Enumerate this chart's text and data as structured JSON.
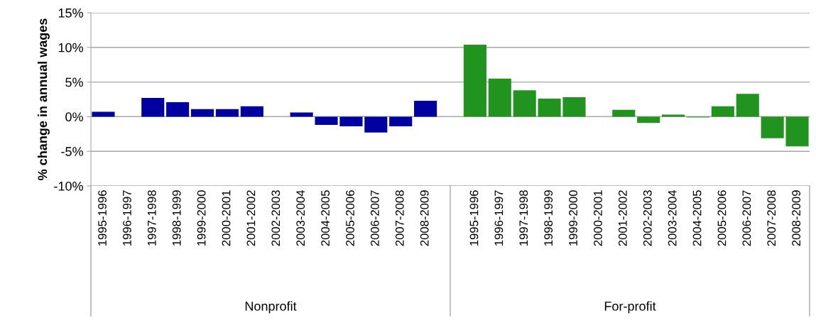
{
  "chart_data": {
    "type": "bar",
    "ylabel": "% change in annual wages",
    "categories": [
      "1995-1996",
      "1996-1997",
      "1997-1998",
      "1998-1999",
      "1999-2000",
      "2000-2001",
      "2001-2002",
      "2002-2003",
      "2003-2004",
      "2004-2005",
      "2005-2006",
      "2006-2007",
      "2007-2008",
      "2008-2009",
      null,
      "1995-1996",
      "1996-1997",
      "1997-1998",
      "1998-1999",
      "1999-2000",
      "2000-2001",
      "2001-2002",
      "2002-2003",
      "2003-2004",
      "2004-2005",
      "2005-2006",
      "2006-2007",
      "2007-2008",
      "2008-2009"
    ],
    "values": [
      0.7,
      0,
      2.7,
      2.1,
      1.1,
      1.1,
      1.5,
      0,
      0.6,
      -1.2,
      -1.4,
      -2.3,
      -1.4,
      2.3,
      null,
      10.4,
      5.5,
      3.8,
      2.6,
      2.8,
      0,
      1.0,
      -0.9,
      0.3,
      -0.1,
      1.5,
      3.3,
      -3.1,
      -4.3
    ],
    "colors": [
      "#0000a0",
      "#0000a0",
      "#0000a0",
      "#0000a0",
      "#0000a0",
      "#0000a0",
      "#0000a0",
      "#0000a0",
      "#0000a0",
      "#0000a0",
      "#0000a0",
      "#0000a0",
      "#0000a0",
      "#0000a0",
      null,
      "#20941e",
      "#20941e",
      "#20941e",
      "#20941e",
      "#20941e",
      "#20941e",
      "#20941e",
      "#20941e",
      "#20941e",
      "#20941e",
      "#20941e",
      "#20941e",
      "#20941e",
      "#20941e"
    ],
    "ylim": [
      -10,
      15
    ],
    "yticks": [
      {
        "value": -10,
        "label": "-10%"
      },
      {
        "value": -5,
        "label": "-5%"
      },
      {
        "value": 0,
        "label": "0%"
      },
      {
        "value": 5,
        "label": "5%"
      },
      {
        "value": 10,
        "label": "10%"
      },
      {
        "value": 15,
        "label": "15%"
      }
    ],
    "grid": "y",
    "annotations": [
      "Nonprofit",
      "For-profit"
    ]
  }
}
